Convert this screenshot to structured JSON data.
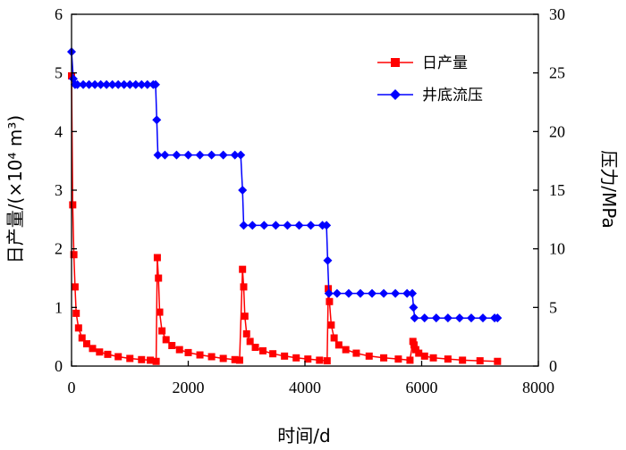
{
  "chart_data": {
    "type": "line",
    "xlabel": "时间/d",
    "ylabel_left": "日产量/(×10⁴ m³)",
    "ylabel_right": "压力/MPa",
    "xlim": [
      0,
      8000
    ],
    "ylim_left": [
      0,
      6
    ],
    "ylim_right": [
      0,
      30
    ],
    "x_ticks": [
      "0",
      "2000",
      "4000",
      "6000",
      "8000"
    ],
    "y_left_ticks": [
      "0",
      "1",
      "2",
      "3",
      "4",
      "5",
      "6"
    ],
    "y_right_ticks": [
      "0",
      "5",
      "10",
      "15",
      "20",
      "25",
      "30"
    ],
    "grid": false,
    "legend_position": "top-right",
    "series": [
      {
        "name": "日产量",
        "axis": "left",
        "color": "#ff0000",
        "marker": "square",
        "x": [
          0,
          20,
          40,
          60,
          80,
          120,
          180,
          260,
          360,
          480,
          620,
          800,
          1000,
          1200,
          1350,
          1450,
          1470,
          1490,
          1510,
          1550,
          1620,
          1720,
          1850,
          2000,
          2200,
          2400,
          2600,
          2800,
          2880,
          2930,
          2950,
          2970,
          3000,
          3060,
          3150,
          3280,
          3450,
          3650,
          3850,
          4050,
          4250,
          4380,
          4400,
          4420,
          4450,
          4500,
          4580,
          4700,
          4880,
          5100,
          5350,
          5600,
          5800,
          5850,
          5870,
          5900,
          5950,
          6050,
          6200,
          6450,
          6700,
          7000,
          7300
        ],
        "values": [
          4.95,
          2.75,
          1.9,
          1.35,
          0.9,
          0.65,
          0.48,
          0.38,
          0.3,
          0.24,
          0.2,
          0.16,
          0.13,
          0.11,
          0.1,
          0.08,
          1.85,
          1.5,
          0.92,
          0.6,
          0.45,
          0.35,
          0.28,
          0.23,
          0.19,
          0.16,
          0.13,
          0.11,
          0.1,
          1.65,
          1.35,
          0.85,
          0.55,
          0.42,
          0.32,
          0.26,
          0.21,
          0.17,
          0.14,
          0.12,
          0.1,
          0.09,
          1.32,
          1.1,
          0.7,
          0.48,
          0.36,
          0.28,
          0.22,
          0.17,
          0.14,
          0.12,
          0.1,
          0.42,
          0.36,
          0.28,
          0.22,
          0.17,
          0.14,
          0.12,
          0.1,
          0.09,
          0.08
        ]
      },
      {
        "name": "井底流压",
        "axis": "right",
        "color": "#0000ff",
        "marker": "diamond",
        "x": [
          0,
          30,
          60,
          100,
          200,
          300,
          400,
          500,
          600,
          700,
          800,
          900,
          1000,
          1100,
          1200,
          1300,
          1400,
          1440,
          1460,
          1480,
          1600,
          1800,
          2000,
          2200,
          2400,
          2600,
          2800,
          2900,
          2930,
          2950,
          3100,
          3300,
          3500,
          3700,
          3900,
          4100,
          4300,
          4370,
          4390,
          4410,
          4550,
          4750,
          4950,
          5150,
          5350,
          5550,
          5750,
          5840,
          5860,
          5880,
          6050,
          6250,
          6450,
          6650,
          6850,
          7050,
          7250,
          7300
        ],
        "values": [
          26.8,
          24.5,
          24,
          24,
          24,
          24,
          24,
          24,
          24,
          24,
          24,
          24,
          24,
          24,
          24,
          24,
          24,
          24,
          21,
          18,
          18,
          18,
          18,
          18,
          18,
          18,
          18,
          18,
          15,
          12,
          12,
          12,
          12,
          12,
          12,
          12,
          12,
          12,
          9,
          6.2,
          6.2,
          6.2,
          6.2,
          6.2,
          6.2,
          6.2,
          6.2,
          6.2,
          5,
          4.1,
          4.1,
          4.1,
          4.1,
          4.1,
          4.1,
          4.1,
          4.1,
          4.1
        ]
      }
    ]
  }
}
